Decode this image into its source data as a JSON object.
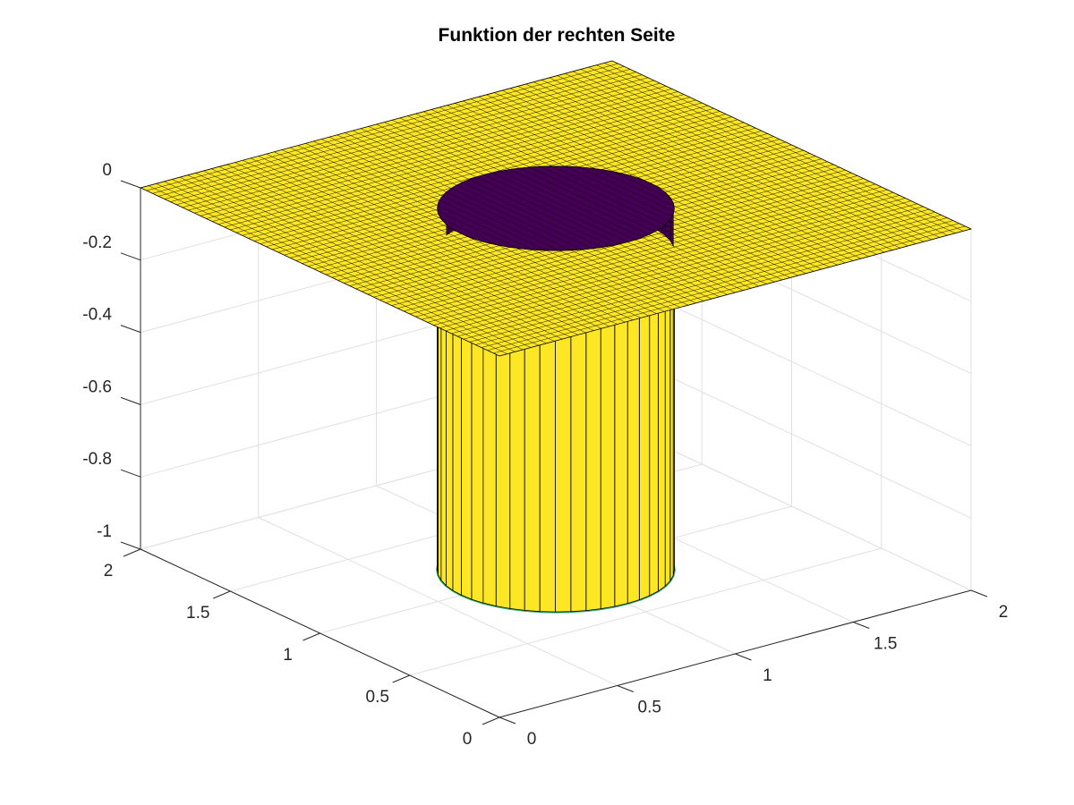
{
  "chart_data": {
    "type": "surface",
    "title": "Funktion der rechten Seite",
    "xlabel": "",
    "ylabel": "",
    "zlabel": "",
    "xlim": [
      0,
      2
    ],
    "ylim": [
      0,
      2
    ],
    "zlim": [
      -1,
      0
    ],
    "x_ticks": [
      "0",
      "0.5",
      "1",
      "1.5",
      "2"
    ],
    "y_ticks": [
      "0",
      "0.5",
      "1",
      "1.5",
      "2"
    ],
    "z_ticks": [
      "0",
      "-0.2",
      "-0.4",
      "-0.6",
      "-0.8",
      "-1"
    ],
    "function": "z = -1 inside disc of radius ~0.4 centered at (1,1); z = 0 elsewhere",
    "disc_center": [
      1,
      1
    ],
    "disc_radius": 0.4,
    "z_outside": 0,
    "z_inside": -1,
    "grid": true,
    "colormap": "viridis",
    "colors": {
      "high": "#fde725",
      "low": "#440154",
      "mid_edge": "#35b779",
      "mesh_line": "#000000",
      "grid_line": "#e0e0e0",
      "axis_line": "#262626"
    }
  }
}
